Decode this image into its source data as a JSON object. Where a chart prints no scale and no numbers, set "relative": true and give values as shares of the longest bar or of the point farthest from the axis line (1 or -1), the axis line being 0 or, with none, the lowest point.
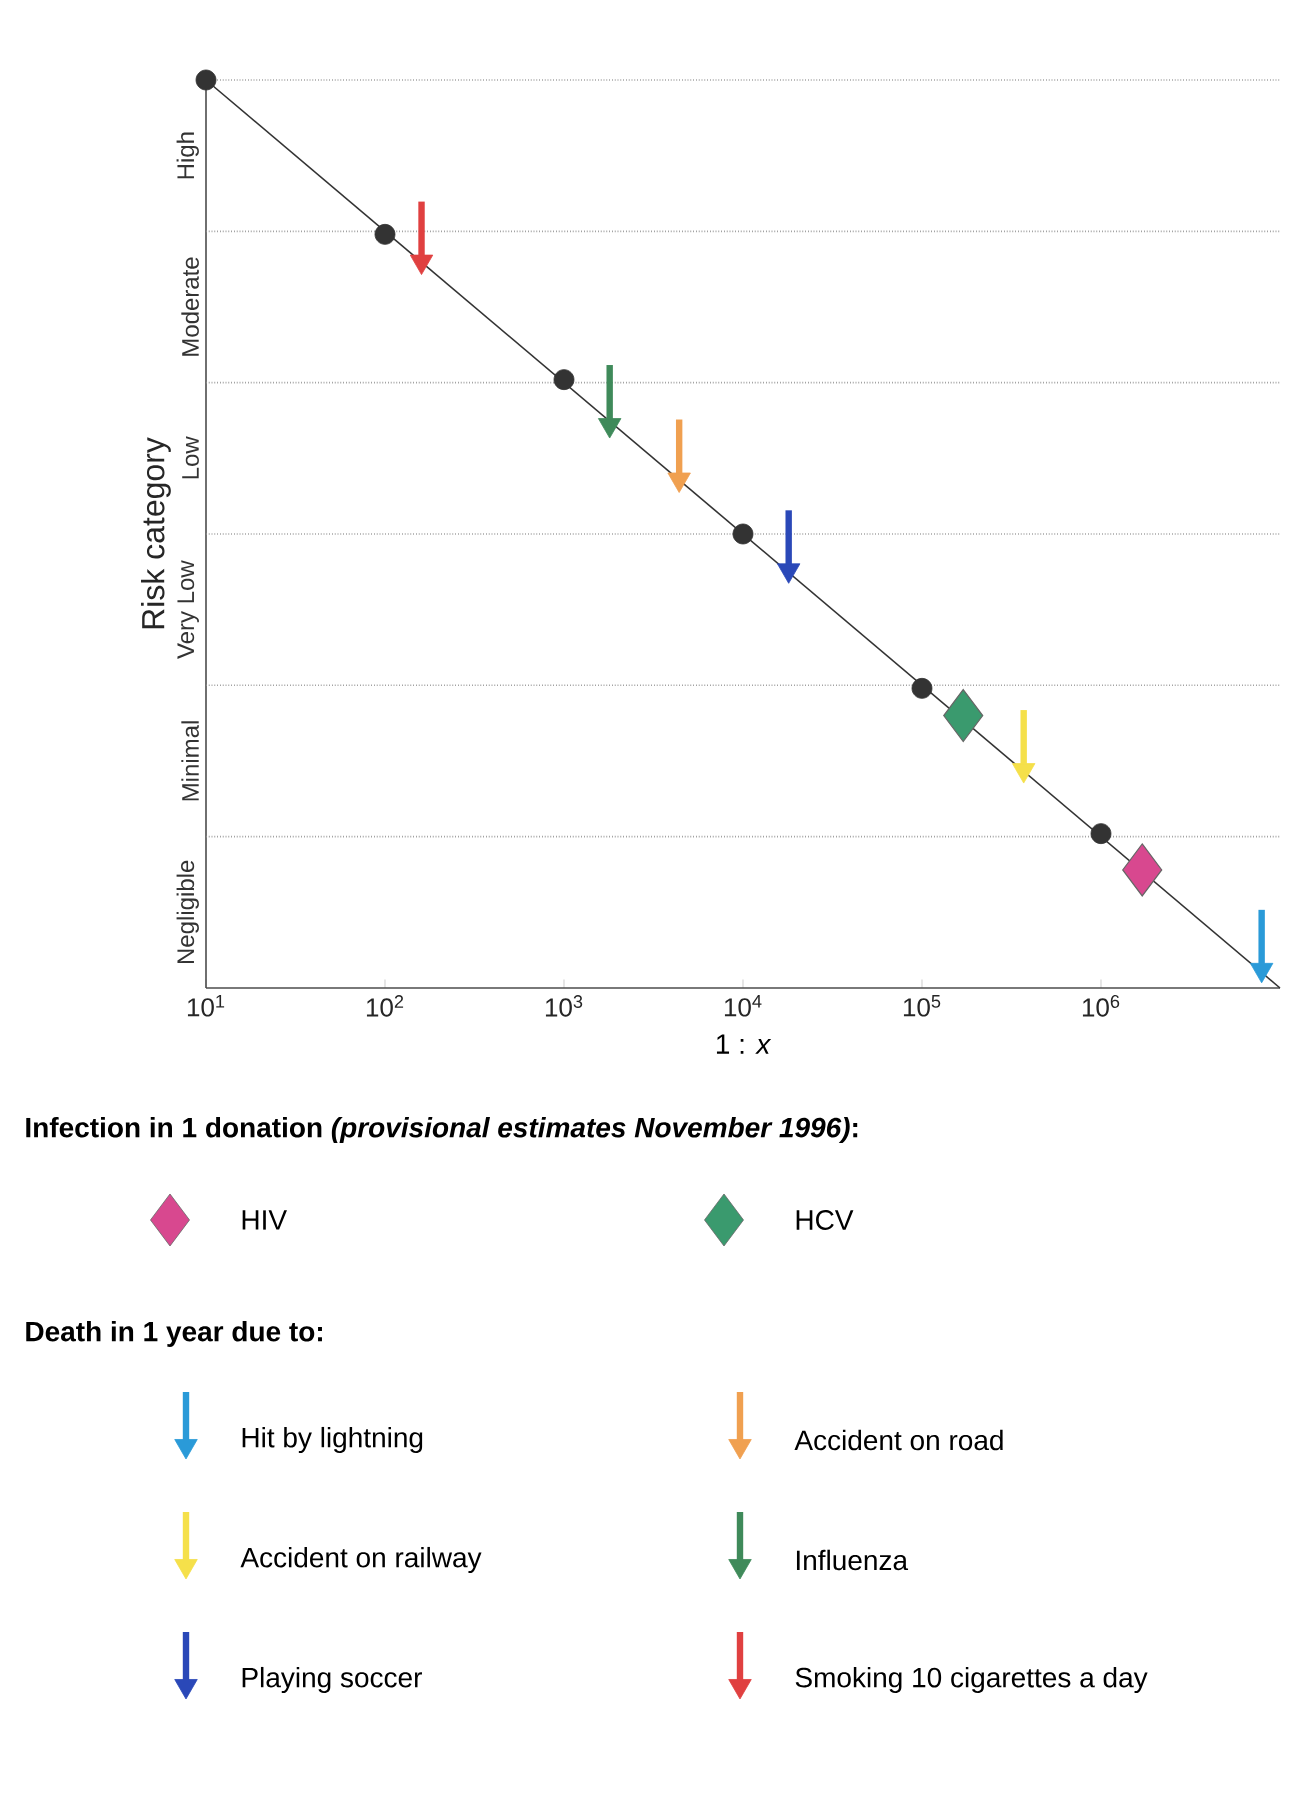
{
  "chart_data": {
    "type": "scatter",
    "relative": true,
    "xlabel": "1 : *x*",
    "ylabel": "Risk category",
    "log": "x",
    "grid": "y",
    "legend": "bottom",
    "legend_title": "Infection in 1 donation *(provisional estimates November 1996)*:",
    "annotations": [
      "Death in 1 year due to:"
    ],
    "xlim": [
      10,
      10000000
    ],
    "xticks": [
      {
        "value": 10,
        "label": "10$^{1}$"
      },
      {
        "value": 100,
        "label": "10$^{2}$"
      },
      {
        "value": 1000,
        "label": "10$^{3}$"
      },
      {
        "value": 10000,
        "label": "10$^{4}$"
      },
      {
        "value": 100000,
        "label": "10$^{5}$"
      },
      {
        "value": 1000000,
        "label": "10$^{6}$"
      }
    ],
    "y_categories": [
      "High",
      "Moderate",
      "Low",
      "Very Low",
      "Minimal",
      "Negligible"
    ],
    "series": [
      {
        "type": "line",
        "color": "#333333",
        "marker": "none",
        "x": [
          10,
          10000000
        ],
        "values": [
          1,
          0
        ]
      },
      {
        "type": "scatter",
        "color": "#333333",
        "marker": "circle",
        "x": [
          10,
          100,
          1000,
          10000,
          100000,
          1000000
        ],
        "values": [
          1,
          0.83,
          0.67,
          0.5,
          0.33,
          0.17
        ]
      },
      {
        "name": "HIV",
        "color": "#d8488f",
        "marker": "diamond",
        "x": [
          1700000
        ],
        "values": [
          0.13
        ]
      },
      {
        "name": "HCV",
        "color": "#3a9a6e",
        "marker": "diamond",
        "x": [
          170000
        ],
        "values": [
          0.3
        ]
      },
      {
        "name": "Hit by lightning",
        "color": "#2a9ad8",
        "marker": "triangle",
        "x": [
          7900000
        ],
        "values": [
          0.02
        ]
      },
      {
        "name": "Accident on road",
        "color": "#f0a050",
        "marker": "triangle",
        "x": [
          4400
        ],
        "values": [
          0.56
        ]
      },
      {
        "name": "Accident on railway",
        "color": "#f5e04a",
        "marker": "triangle",
        "x": [
          370000
        ],
        "values": [
          0.24
        ]
      },
      {
        "name": "Influenza",
        "color": "#3f8a5a",
        "marker": "triangle",
        "x": [
          1800
        ],
        "values": [
          0.62
        ]
      },
      {
        "name": "Playing soccer",
        "color": "#2a48b8",
        "marker": "triangle",
        "x": [
          18000
        ],
        "values": [
          0.46
        ]
      },
      {
        "name": "Smoking 10 cigarettes a day",
        "color": "#e04040",
        "marker": "triangle",
        "x": [
          160
        ],
        "values": [
          0.8
        ]
      }
    ]
  }
}
